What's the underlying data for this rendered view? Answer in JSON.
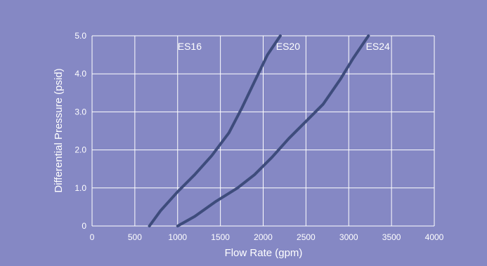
{
  "colors": {
    "background": "#8588c4",
    "grid": "#ffffff",
    "line": "#3e4c7c",
    "text": "#ffffff"
  },
  "chart_data": {
    "type": "line",
    "title": "",
    "xlabel": "Flow Rate (gpm)",
    "ylabel": "Differential Pressure (psid)",
    "xlim": [
      0,
      4000
    ],
    "ylim": [
      0,
      5
    ],
    "xticks": [
      "0",
      "500",
      "1000",
      "1500",
      "2000",
      "2500",
      "3000",
      "3500",
      "4000"
    ],
    "xtick_values": [
      0,
      500,
      1000,
      1500,
      2000,
      2500,
      3000,
      3500,
      4000
    ],
    "yticks": [
      "0",
      "1.0",
      "2.0",
      "3.0",
      "4.0",
      "5.0"
    ],
    "ytick_values": [
      0,
      1,
      2,
      3,
      4,
      5
    ],
    "grid": true,
    "legend": "none",
    "series": [
      {
        "name": "ES16",
        "label_at": [
          1000,
          5.0
        ],
        "points": [
          [
            670,
            0
          ],
          [
            800,
            0.4
          ],
          [
            1000,
            0.9
          ],
          [
            1200,
            1.35
          ],
          [
            1400,
            1.85
          ],
          [
            1600,
            2.45
          ],
          [
            1750,
            3.1
          ],
          [
            1900,
            3.8
          ],
          [
            2050,
            4.5
          ],
          [
            2200,
            5.0
          ]
        ]
      },
      {
        "name": "ES20",
        "label_at": [
          2150,
          5.0
        ],
        "points": [
          [
            1000,
            0
          ],
          [
            1200,
            0.25
          ],
          [
            1450,
            0.65
          ],
          [
            1700,
            1.0
          ],
          [
            1900,
            1.35
          ],
          [
            2100,
            1.8
          ],
          [
            2300,
            2.3
          ],
          [
            2500,
            2.75
          ],
          [
            2700,
            3.2
          ],
          [
            2900,
            3.85
          ],
          [
            3050,
            4.4
          ],
          [
            3230,
            5.0
          ]
        ]
      }
    ],
    "annotations": [
      "ES24"
    ],
    "annotation_at": [
      [
        3200,
        5.0
      ]
    ]
  }
}
